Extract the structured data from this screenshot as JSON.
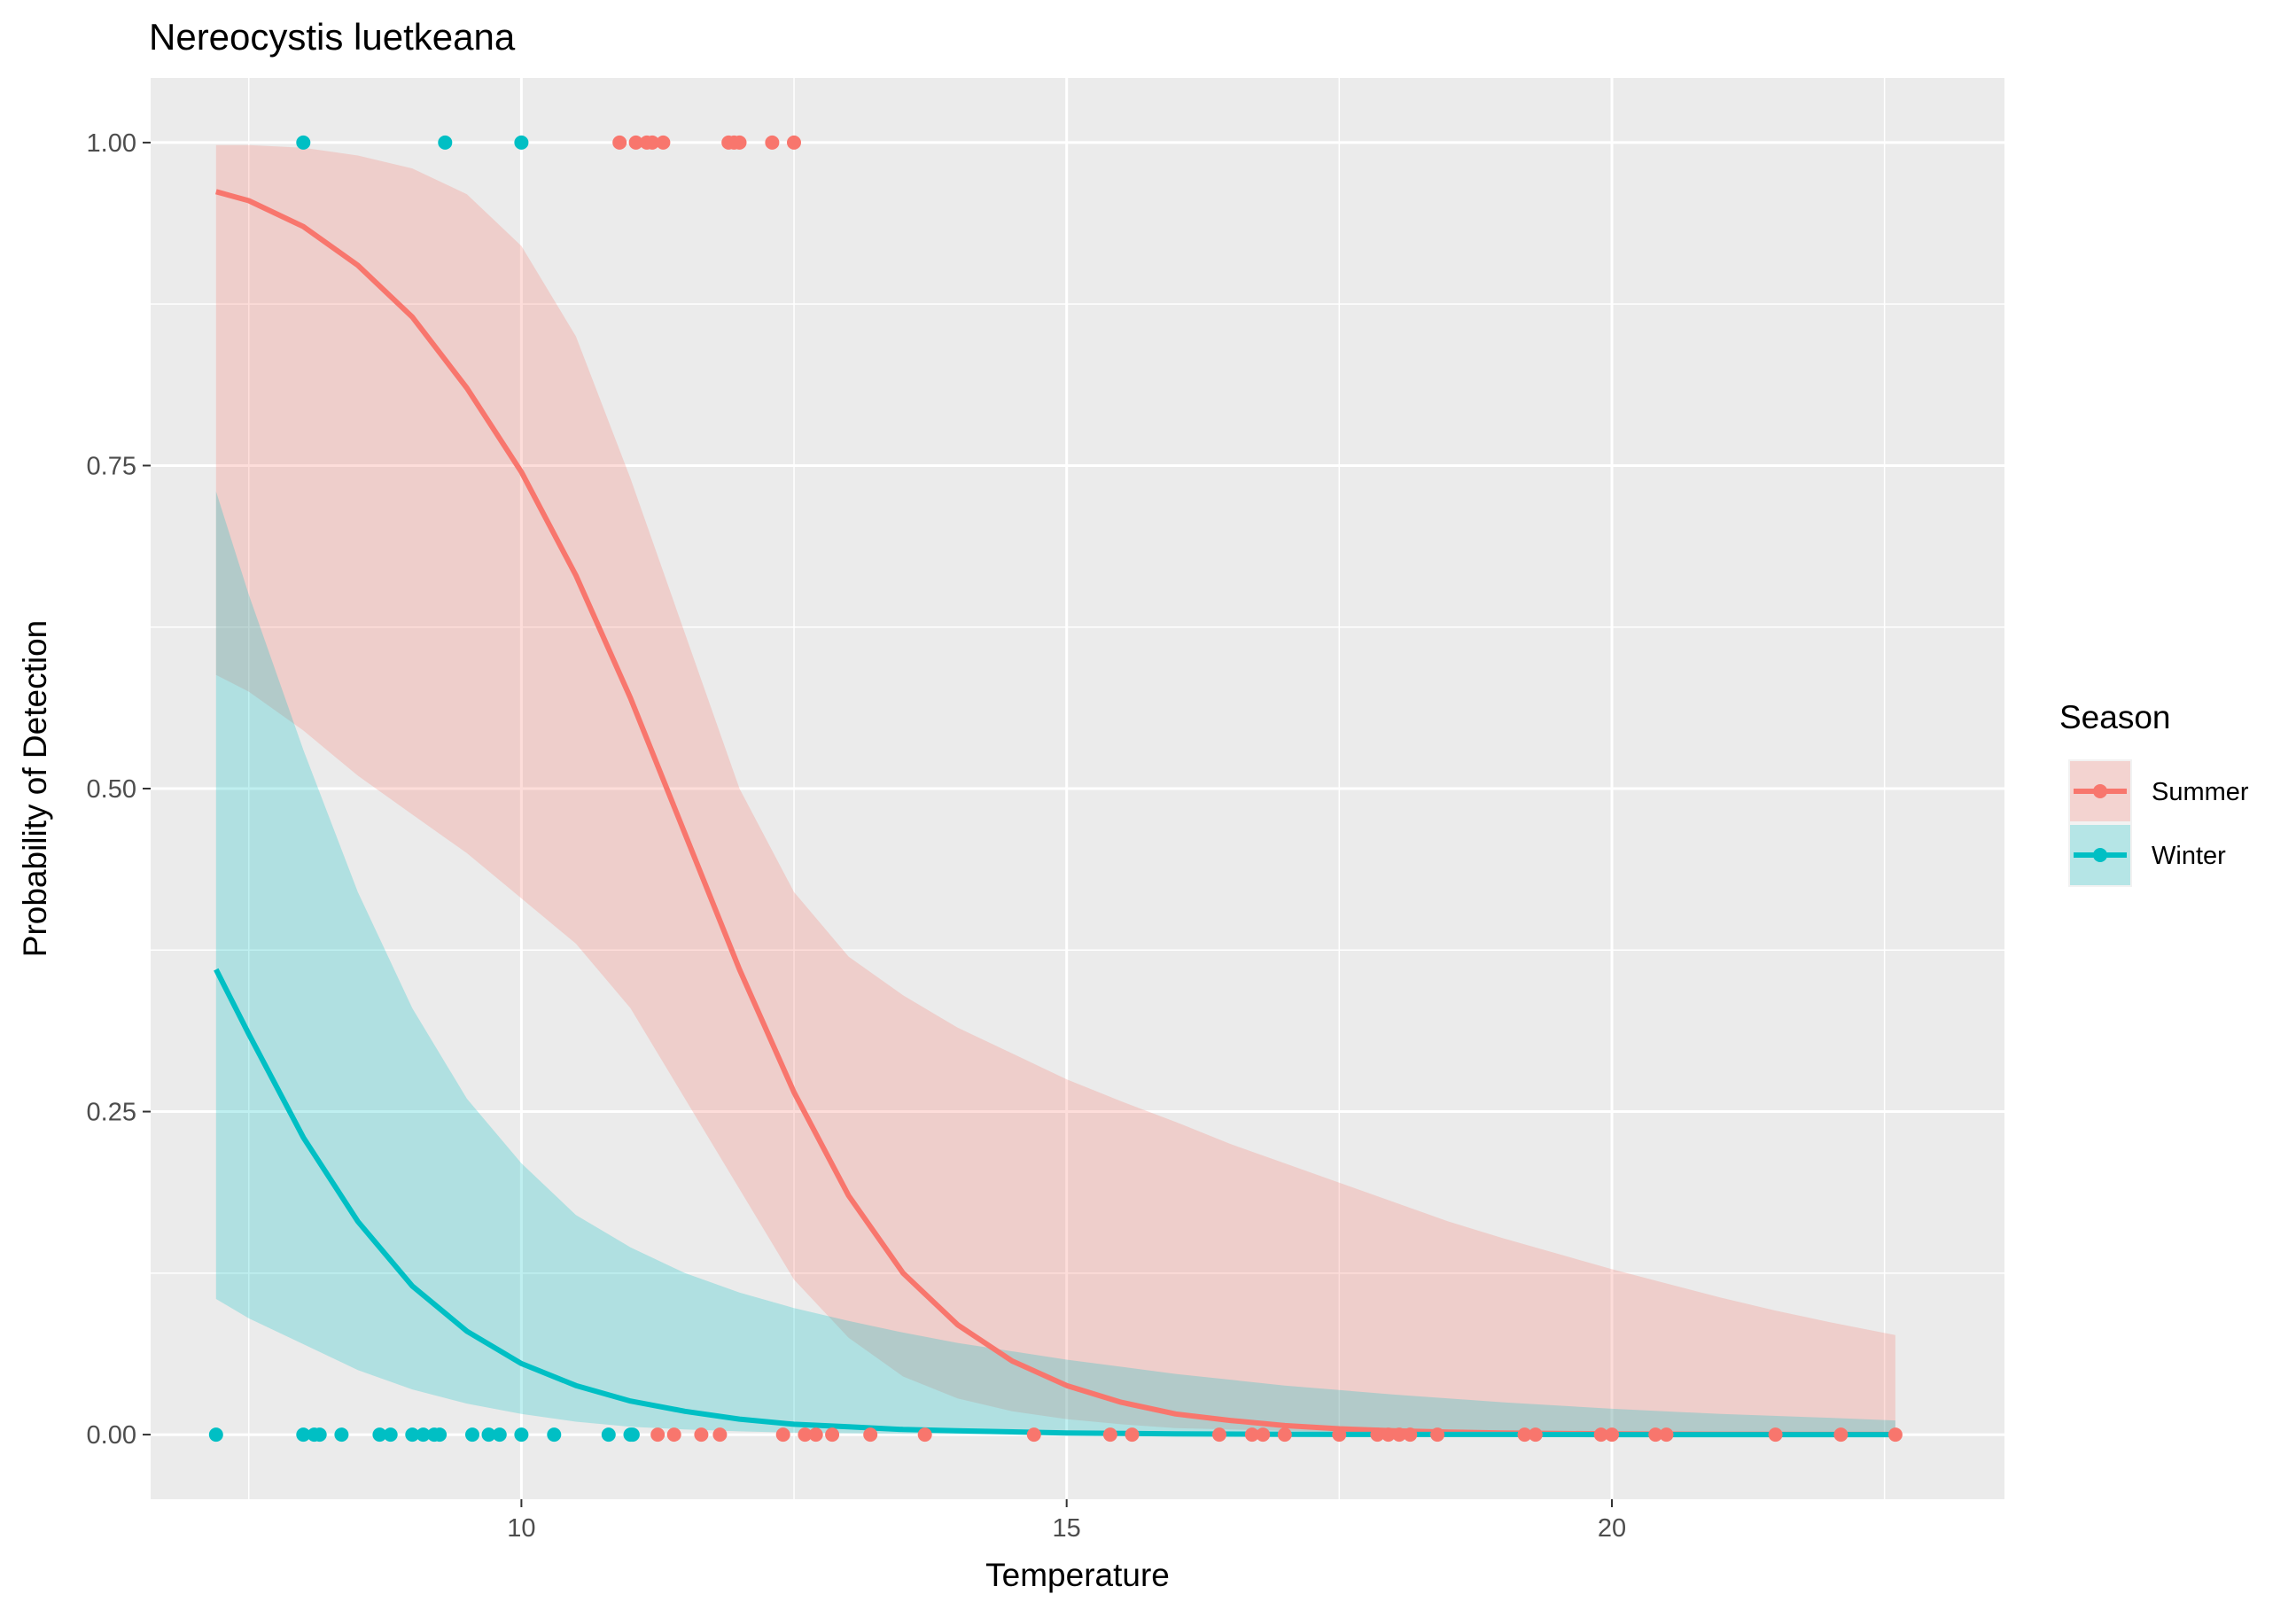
{
  "chart_data": {
    "type": "scatter",
    "title": "Nereocystis luetkeana",
    "xlabel": "Temperature",
    "ylabel": "Probability of Detection",
    "xlim": [
      6.6,
      23.6
    ],
    "ylim": [
      -0.05,
      1.05
    ],
    "x_ticks": [
      10,
      15,
      20
    ],
    "y_ticks": [
      0,
      0.25,
      0.5,
      0.75,
      1.0
    ],
    "x_tick_labels": [
      "10",
      "15",
      "20"
    ],
    "y_tick_labels": [
      "0.00",
      "0.25",
      "0.50",
      "0.75",
      "1.00"
    ],
    "grid": true,
    "legend": {
      "title": "Season",
      "position": "right"
    },
    "series": [
      {
        "name": "Summer",
        "color": "#F8766D",
        "fill": "#F8766D",
        "points": [
          [
            10.9,
            1
          ],
          [
            11.05,
            1
          ],
          [
            11.15,
            1
          ],
          [
            11.2,
            1
          ],
          [
            11.3,
            1
          ],
          [
            11.9,
            1
          ],
          [
            11.95,
            1
          ],
          [
            12.0,
            1
          ],
          [
            12.3,
            1
          ],
          [
            12.5,
            1
          ],
          [
            11.25,
            0
          ],
          [
            11.4,
            0
          ],
          [
            11.65,
            0
          ],
          [
            11.82,
            0
          ],
          [
            12.4,
            0
          ],
          [
            12.6,
            0
          ],
          [
            12.7,
            0
          ],
          [
            12.85,
            0
          ],
          [
            13.2,
            0
          ],
          [
            13.7,
            0
          ],
          [
            14.7,
            0
          ],
          [
            15.4,
            0
          ],
          [
            15.6,
            0
          ],
          [
            16.4,
            0
          ],
          [
            16.7,
            0
          ],
          [
            16.8,
            0
          ],
          [
            17.0,
            0
          ],
          [
            17.5,
            0
          ],
          [
            17.85,
            0
          ],
          [
            17.95,
            0
          ],
          [
            18.05,
            0
          ],
          [
            18.15,
            0
          ],
          [
            18.4,
            0
          ],
          [
            19.2,
            0
          ],
          [
            19.3,
            0
          ],
          [
            19.9,
            0
          ],
          [
            20.0,
            0
          ],
          [
            20.4,
            0
          ],
          [
            20.5,
            0
          ],
          [
            21.5,
            0
          ],
          [
            22.1,
            0
          ],
          [
            22.6,
            0
          ]
        ],
        "curve": [
          [
            7.2,
            0.962
          ],
          [
            7.5,
            0.955
          ],
          [
            8.0,
            0.935
          ],
          [
            8.5,
            0.905
          ],
          [
            9.0,
            0.865
          ],
          [
            9.5,
            0.81
          ],
          [
            10.0,
            0.745
          ],
          [
            10.5,
            0.665
          ],
          [
            11.0,
            0.57
          ],
          [
            11.5,
            0.465
          ],
          [
            12.0,
            0.36
          ],
          [
            12.5,
            0.265
          ],
          [
            13.0,
            0.185
          ],
          [
            13.5,
            0.125
          ],
          [
            14.0,
            0.085
          ],
          [
            14.5,
            0.057
          ],
          [
            15.0,
            0.038
          ],
          [
            15.5,
            0.025
          ],
          [
            16.0,
            0.016
          ],
          [
            16.5,
            0.011
          ],
          [
            17.0,
            0.007
          ],
          [
            17.5,
            0.0045
          ],
          [
            18.0,
            0.003
          ],
          [
            18.5,
            0.002
          ],
          [
            19.0,
            0.0013
          ],
          [
            19.5,
            0.0009
          ],
          [
            20.0,
            0.0006
          ],
          [
            20.5,
            0.0004
          ],
          [
            21.0,
            0.0003
          ],
          [
            21.5,
            0.0002
          ],
          [
            22.0,
            0.0001
          ],
          [
            22.6,
            0.0001
          ]
        ],
        "ci_upper": [
          [
            7.2,
            0.998
          ],
          [
            7.5,
            0.998
          ],
          [
            8.0,
            0.996
          ],
          [
            8.5,
            0.99
          ],
          [
            9.0,
            0.98
          ],
          [
            9.5,
            0.96
          ],
          [
            10.0,
            0.92
          ],
          [
            10.5,
            0.85
          ],
          [
            11.0,
            0.74
          ],
          [
            11.5,
            0.62
          ],
          [
            12.0,
            0.5
          ],
          [
            12.5,
            0.42
          ],
          [
            13.0,
            0.37
          ],
          [
            13.5,
            0.34
          ],
          [
            14.0,
            0.315
          ],
          [
            14.5,
            0.295
          ],
          [
            15.0,
            0.275
          ],
          [
            15.5,
            0.258
          ],
          [
            16.0,
            0.242
          ],
          [
            16.5,
            0.225
          ],
          [
            17.0,
            0.21
          ],
          [
            17.5,
            0.195
          ],
          [
            18.0,
            0.18
          ],
          [
            18.5,
            0.165
          ],
          [
            19.0,
            0.152
          ],
          [
            19.5,
            0.14
          ],
          [
            20.0,
            0.128
          ],
          [
            20.5,
            0.117
          ],
          [
            21.0,
            0.106
          ],
          [
            21.5,
            0.096
          ],
          [
            22.0,
            0.087
          ],
          [
            22.6,
            0.077
          ]
        ],
        "ci_lower": [
          [
            7.2,
            0.588
          ],
          [
            7.5,
            0.575
          ],
          [
            8.0,
            0.545
          ],
          [
            8.5,
            0.51
          ],
          [
            9.0,
            0.48
          ],
          [
            9.5,
            0.45
          ],
          [
            10.0,
            0.415
          ],
          [
            10.5,
            0.38
          ],
          [
            11.0,
            0.33
          ],
          [
            11.5,
            0.26
          ],
          [
            12.0,
            0.19
          ],
          [
            12.5,
            0.12
          ],
          [
            13.0,
            0.075
          ],
          [
            13.5,
            0.045
          ],
          [
            14.0,
            0.028
          ],
          [
            14.5,
            0.018
          ],
          [
            15.0,
            0.012
          ],
          [
            15.5,
            0.008
          ],
          [
            16.0,
            0.005
          ],
          [
            16.5,
            0.004
          ],
          [
            17.0,
            0.003
          ],
          [
            17.5,
            0.002
          ],
          [
            18.0,
            0.0015
          ],
          [
            18.5,
            0.001
          ],
          [
            19.0,
            0.0008
          ],
          [
            19.5,
            0.0006
          ],
          [
            20.0,
            0.0005
          ],
          [
            20.5,
            0.0004
          ],
          [
            21.0,
            0.0003
          ],
          [
            21.5,
            0.0002
          ],
          [
            22.0,
            0.0001
          ],
          [
            22.6,
            0.0001
          ]
        ]
      },
      {
        "name": "Winter",
        "color": "#00BFC4",
        "fill": "#00BFC4",
        "points": [
          [
            8.0,
            1
          ],
          [
            9.3,
            1
          ],
          [
            10.0,
            1
          ],
          [
            7.2,
            0
          ],
          [
            8.0,
            0
          ],
          [
            8.1,
            0
          ],
          [
            8.15,
            0
          ],
          [
            8.35,
            0
          ],
          [
            8.7,
            0
          ],
          [
            8.8,
            0
          ],
          [
            9.0,
            0
          ],
          [
            9.1,
            0
          ],
          [
            9.2,
            0
          ],
          [
            9.25,
            0
          ],
          [
            9.55,
            0
          ],
          [
            9.7,
            0
          ],
          [
            9.8,
            0
          ],
          [
            10.0,
            0
          ],
          [
            10.3,
            0
          ],
          [
            10.8,
            0
          ],
          [
            11.0,
            0
          ],
          [
            11.02,
            0
          ]
        ],
        "curve": [
          [
            7.2,
            0.36
          ],
          [
            7.5,
            0.31
          ],
          [
            8.0,
            0.23
          ],
          [
            8.5,
            0.165
          ],
          [
            9.0,
            0.115
          ],
          [
            9.5,
            0.08
          ],
          [
            10.0,
            0.055
          ],
          [
            10.5,
            0.038
          ],
          [
            11.0,
            0.026
          ],
          [
            11.5,
            0.018
          ],
          [
            12.0,
            0.012
          ],
          [
            12.5,
            0.008
          ],
          [
            13.0,
            0.006
          ],
          [
            13.5,
            0.004
          ],
          [
            14.0,
            0.003
          ],
          [
            15.0,
            0.0013
          ],
          [
            16.0,
            0.0006
          ],
          [
            17.0,
            0.0003
          ],
          [
            18.0,
            0.0001
          ],
          [
            19.0,
            0.0001
          ],
          [
            20.0,
            0
          ],
          [
            21.0,
            0
          ],
          [
            22.0,
            0
          ],
          [
            22.6,
            0
          ]
        ],
        "ci_upper": [
          [
            7.2,
            0.73
          ],
          [
            7.5,
            0.65
          ],
          [
            8.0,
            0.53
          ],
          [
            8.5,
            0.42
          ],
          [
            9.0,
            0.33
          ],
          [
            9.5,
            0.26
          ],
          [
            10.0,
            0.21
          ],
          [
            10.5,
            0.17
          ],
          [
            11.0,
            0.145
          ],
          [
            11.5,
            0.125
          ],
          [
            12.0,
            0.11
          ],
          [
            12.5,
            0.098
          ],
          [
            13.0,
            0.088
          ],
          [
            13.5,
            0.079
          ],
          [
            14.0,
            0.071
          ],
          [
            15.0,
            0.058
          ],
          [
            16.0,
            0.047
          ],
          [
            17.0,
            0.038
          ],
          [
            18.0,
            0.031
          ],
          [
            19.0,
            0.025
          ],
          [
            20.0,
            0.02
          ],
          [
            21.0,
            0.016
          ],
          [
            22.0,
            0.013
          ],
          [
            22.6,
            0.011
          ]
        ],
        "ci_lower": [
          [
            7.2,
            0.105
          ],
          [
            7.5,
            0.09
          ],
          [
            8.0,
            0.07
          ],
          [
            8.5,
            0.05
          ],
          [
            9.0,
            0.035
          ],
          [
            9.5,
            0.024
          ],
          [
            10.0,
            0.016
          ],
          [
            10.5,
            0.01
          ],
          [
            11.0,
            0.006
          ],
          [
            11.5,
            0.004
          ],
          [
            12.0,
            0.0025
          ],
          [
            12.5,
            0.0015
          ],
          [
            13.0,
            0.001
          ],
          [
            13.5,
            0.0006
          ],
          [
            14.0,
            0.0004
          ],
          [
            15.0,
            0.0002
          ],
          [
            16.0,
            0.0001
          ],
          [
            17.0,
            0
          ],
          [
            18.0,
            0
          ],
          [
            19.0,
            0
          ],
          [
            20.0,
            0
          ],
          [
            21.0,
            0
          ],
          [
            22.0,
            0
          ],
          [
            22.6,
            0
          ]
        ]
      }
    ]
  }
}
